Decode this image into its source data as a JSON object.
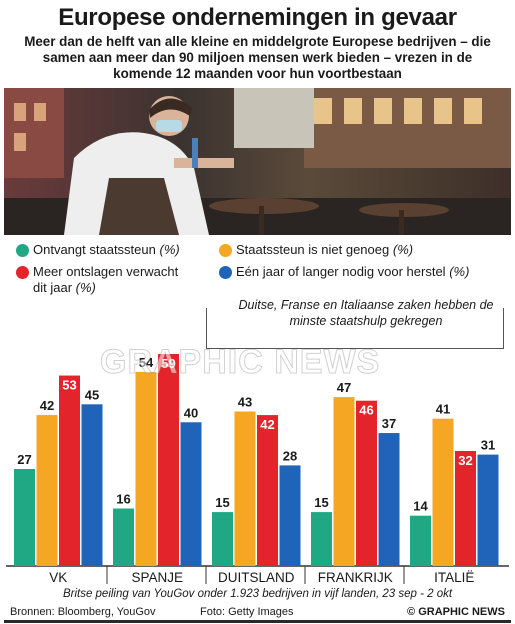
{
  "title": "Europese ondernemingen in gevaar",
  "subtitle": "Meer dan de helft van alle kleine en middelgrote Europese bedrijven – die samen aan meer dan 90 miljoen mensen werk bieden – vrezen in de komende 12 maanden voor hun voortbestaan",
  "photo_credit": "Foto: Getty Images",
  "sources": "Bronnen: Bloomberg, YouGov",
  "brand": "© GRAPHIC NEWS",
  "watermark": "GRAPHIC NEWS",
  "footnote": "Britse peiling van YouGov onder 1.923 bedrijven in vijf landen, 23 sep - 2 okt",
  "callout": "Duitse, Franse en Italiaanse zaken hebben de minste staatshulp gekregen",
  "legend": [
    {
      "label": "Ontvangt staatssteun",
      "unit": "(%)",
      "color": "#1fa883"
    },
    {
      "label": "Staatssteun is niet genoeg",
      "unit": "(%)",
      "color": "#f5a623"
    },
    {
      "label": "Meer ontslagen verwacht dit jaar",
      "unit": "(%)",
      "color": "#e3242b"
    },
    {
      "label": "Eén jaar of langer nodig voor herstel",
      "unit": "(%)",
      "color": "#1f64b8"
    }
  ],
  "chart_data": {
    "type": "bar",
    "categories": [
      "VK",
      "SPANJE",
      "DUITSLAND",
      "FRANKRIJK",
      "ITALIË"
    ],
    "series": [
      {
        "name": "Ontvangt staatssteun",
        "color": "#1fa883",
        "values": [
          27,
          16,
          15,
          15,
          14
        ]
      },
      {
        "name": "Staatssteun is niet genoeg",
        "color": "#f5a623",
        "values": [
          42,
          54,
          43,
          47,
          41
        ]
      },
      {
        "name": "Meer ontslagen verwacht dit jaar",
        "color": "#e3242b",
        "values": [
          53,
          59,
          42,
          46,
          32
        ]
      },
      {
        "name": "Eén jaar of langer nodig voor herstel",
        "color": "#1f64b8",
        "values": [
          45,
          40,
          28,
          37,
          31
        ]
      }
    ],
    "ylim": [
      0,
      65
    ],
    "grid": false,
    "legend_placement": "top"
  }
}
